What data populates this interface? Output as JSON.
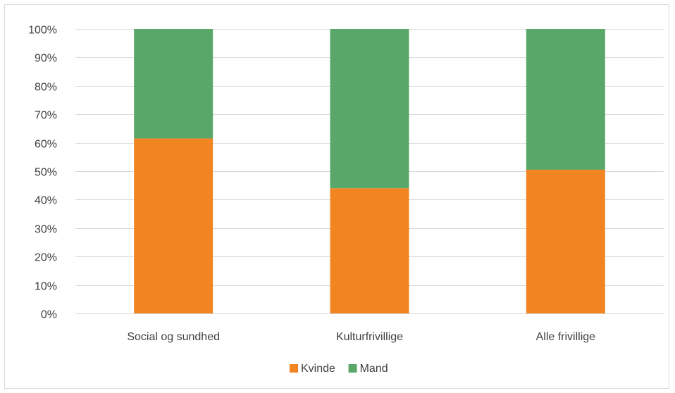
{
  "chart_data": {
    "type": "bar",
    "stacked": true,
    "categories": [
      "Social og sundhed",
      "Kulturfrivillige",
      "Alle frivillige"
    ],
    "series": [
      {
        "name": "Kvinde",
        "values": [
          61.5,
          44,
          50.5
        ],
        "color": "#F28522"
      },
      {
        "name": "Mand",
        "values": [
          38.5,
          56,
          49.5
        ],
        "color": "#59A869"
      }
    ],
    "ylim": [
      0,
      100
    ],
    "yticks": [
      0,
      10,
      20,
      30,
      40,
      50,
      60,
      70,
      80,
      90,
      100
    ],
    "ytick_format": "%",
    "grid": true,
    "gridline_color": "#d9d9d9",
    "legend_position": "bottom",
    "title": "",
    "xlabel": "",
    "ylabel": ""
  }
}
